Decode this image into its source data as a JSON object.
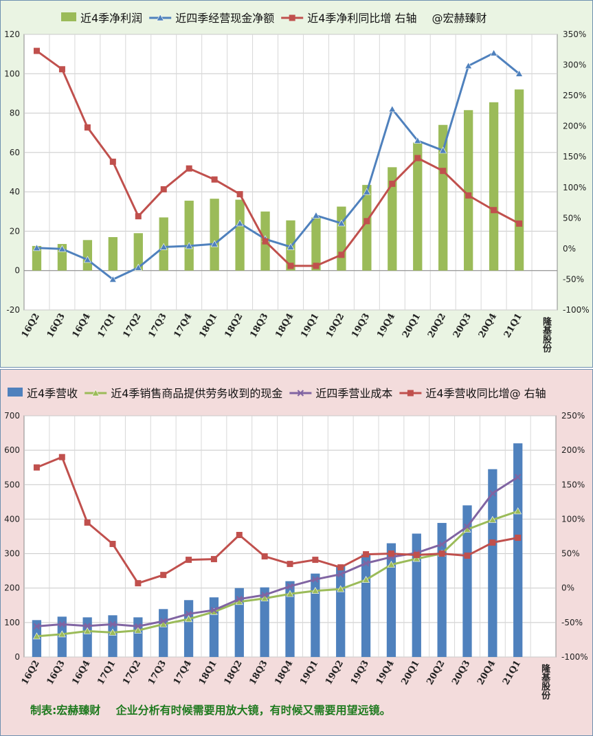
{
  "chart_data": [
    {
      "type": "bar+line",
      "title": "",
      "categories": [
        "16Q2",
        "16Q3",
        "16Q4",
        "17Q1",
        "17Q2",
        "17Q3",
        "17Q4",
        "18Q1",
        "18Q2",
        "18Q3",
        "18Q4",
        "19Q1",
        "19Q2",
        "19Q3",
        "19Q4",
        "20Q1",
        "20Q2",
        "20Q3",
        "20Q4",
        "21Q1"
      ],
      "extra_category_label": "隆基股份",
      "legend": [
        "近4季净利润",
        "近四季经营现金净额",
        "近4季净利同比增 右轴",
        "@宏赫臻财"
      ],
      "ylim": [
        -20,
        120
      ],
      "yticks": [
        "-20",
        "0",
        "20",
        "40",
        "60",
        "80",
        "100",
        "120"
      ],
      "y2lim": [
        -100,
        350
      ],
      "y2ticks": [
        "-100%",
        "-50%",
        "0%",
        "50%",
        "100%",
        "150%",
        "200%",
        "250%",
        "300%",
        "350%"
      ],
      "grid": true,
      "series": [
        {
          "name": "近4季净利润",
          "kind": "bar",
          "axis": "left",
          "color": "#9bbb59",
          "values": [
            12.5,
            13.5,
            15.5,
            17,
            19,
            27,
            35.5,
            36.5,
            36,
            30,
            25.5,
            27,
            32.5,
            43.5,
            52.5,
            65,
            74,
            81.5,
            85.5,
            92
          ]
        },
        {
          "name": "近四季经营现金净额",
          "kind": "line",
          "marker": "triangle",
          "axis": "left",
          "color": "#4f81bd",
          "values": [
            11.5,
            11,
            5.5,
            -4.5,
            1.5,
            12,
            12.5,
            13.5,
            24,
            16,
            12,
            28,
            24,
            40,
            82,
            66,
            61,
            104,
            110.5,
            100
          ]
        },
        {
          "name": "近4季净利同比增 右轴",
          "kind": "line",
          "marker": "square",
          "axis": "right",
          "color": "#c0504d",
          "values": [
            323,
            293,
            198,
            142,
            53,
            97,
            131,
            113,
            89,
            12,
            -28,
            -28,
            -10,
            45,
            106,
            148,
            127,
            87,
            63,
            41
          ]
        }
      ]
    },
    {
      "type": "bar+line",
      "title": "",
      "categories": [
        "16Q2",
        "16Q3",
        "16Q4",
        "17Q1",
        "17Q2",
        "17Q3",
        "17Q4",
        "18Q1",
        "18Q2",
        "18Q3",
        "18Q4",
        "19Q1",
        "19Q2",
        "19Q3",
        "19Q4",
        "20Q1",
        "20Q2",
        "20Q3",
        "20Q4",
        "21Q1"
      ],
      "extra_category_label": "隆基股份",
      "legend": [
        "近4季营收",
        "近4季销售商品提供劳务收到的现金",
        "近四季营业成本",
        "近4季营收同比增@ 右轴"
      ],
      "ylim": [
        0,
        700
      ],
      "yticks": [
        "0",
        "100",
        "200",
        "300",
        "400",
        "500",
        "600",
        "700"
      ],
      "y2lim": [
        -100,
        250
      ],
      "y2ticks": [
        "-100%",
        "-50%",
        "0%",
        "50%",
        "100%",
        "150%",
        "200%",
        "250%"
      ],
      "grid": true,
      "series": [
        {
          "name": "近4季营收",
          "kind": "bar",
          "axis": "left",
          "color": "#4f81bd",
          "values": [
            107,
            117,
            115,
            121,
            115,
            139,
            165,
            173,
            200,
            202,
            220,
            242,
            265,
            298,
            330,
            358,
            389,
            440,
            545,
            620
          ]
        },
        {
          "name": "近4季销售商品提供劳务收到的现金",
          "kind": "line",
          "marker": "triangle",
          "axis": "left",
          "color": "#9bbb59",
          "values": [
            60,
            66,
            75,
            71,
            77,
            95,
            110,
            131,
            160,
            170,
            183,
            192,
            197,
            224,
            268,
            285,
            300,
            370,
            398,
            423
          ]
        },
        {
          "name": "近四季营业成本",
          "kind": "line",
          "marker": "x",
          "axis": "left",
          "color": "#8064a2",
          "values": [
            89,
            95,
            90,
            95,
            89,
            104,
            125,
            136,
            168,
            180,
            205,
            225,
            240,
            272,
            290,
            302,
            327,
            378,
            475,
            522
          ]
        },
        {
          "name": "近4季营收同比增@ 右轴",
          "kind": "line",
          "marker": "square",
          "axis": "right",
          "color": "#c0504d",
          "values": [
            175,
            190,
            95,
            64,
            7,
            19,
            41,
            42,
            77,
            46,
            35,
            41,
            30,
            49,
            50,
            48,
            50,
            47,
            66,
            73
          ]
        }
      ]
    }
  ],
  "footer": {
    "note": "制表:宏赫臻财    企业分析有时候需要用放大镜，有时候又需要用望远镜。"
  }
}
